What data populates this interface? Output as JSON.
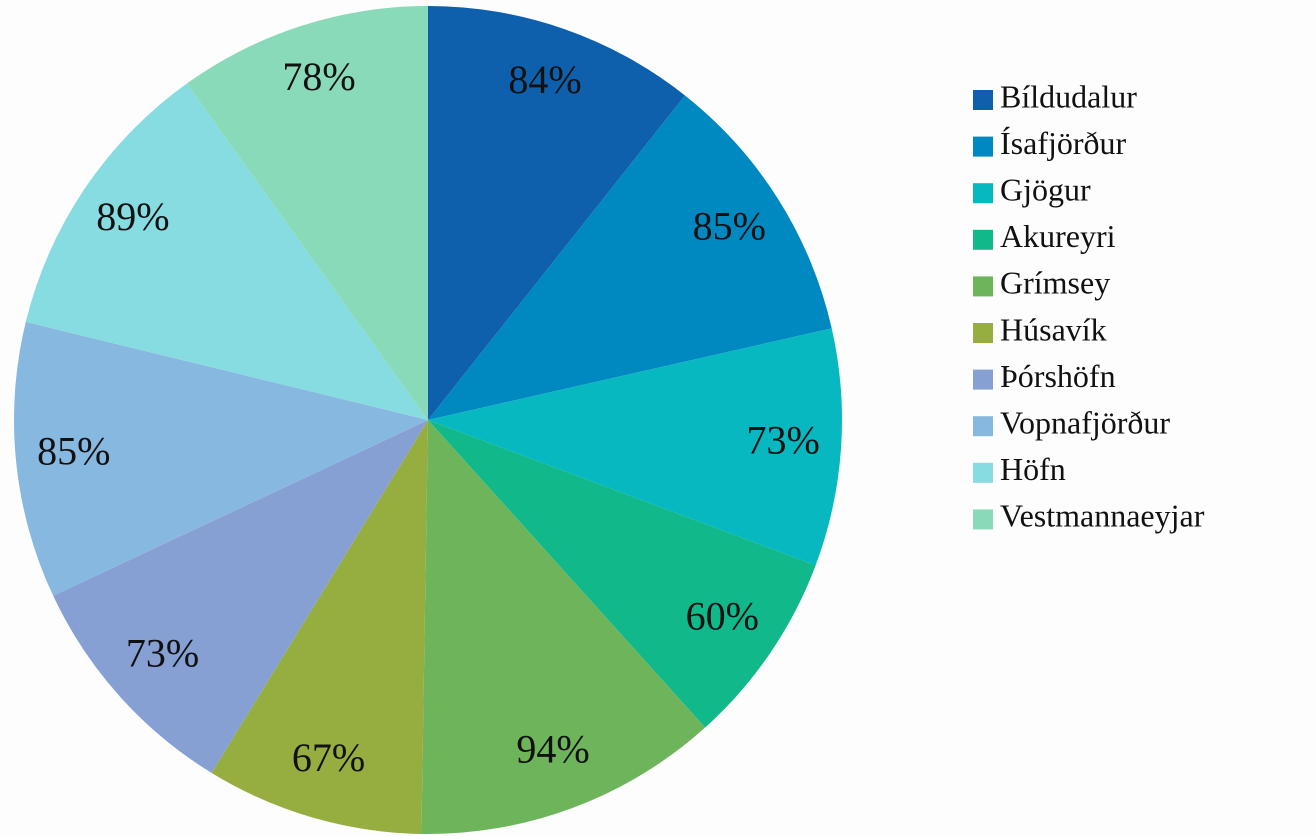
{
  "chart_data": {
    "type": "pie",
    "categories": [
      "Bíldudalur",
      "Ísafjörður",
      "Gjögur",
      "Akureyri",
      "Grímsey",
      "Húsavík",
      "Þórshöfn",
      "Vopnafjörður",
      "Höfn",
      "Vestmannaeyjar"
    ],
    "values": [
      84,
      85,
      73,
      60,
      94,
      67,
      73,
      85,
      89,
      78
    ],
    "value_labels": [
      "84%",
      "85%",
      "73%",
      "60%",
      "94%",
      "67%",
      "73%",
      "85%",
      "89%",
      "78%"
    ],
    "colors": [
      "#0e5fac",
      "#0088c0",
      "#08b8c0",
      "#10b88a",
      "#6db45a",
      "#96ae40",
      "#87a0d4",
      "#87b8e0",
      "#86dce0",
      "#88dab8"
    ],
    "legend": "right"
  }
}
